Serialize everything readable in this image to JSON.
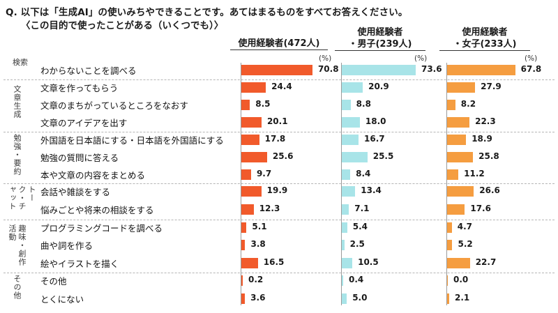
{
  "question": {
    "line1": "Q. 以下は「生成AI」の使いみちやできることです。あてはまるものをすべてお答えください。",
    "line2": "〈この目的で使ったことがある（いくつでも）〉"
  },
  "columns": [
    {
      "line1": "使用経験者(472人)",
      "line2": "",
      "color": "#f15a2b"
    },
    {
      "line1": "使用経験者",
      "line2": "・男子(239人)",
      "color": "#a8e4e8"
    },
    {
      "line1": "使用経験者",
      "line2": "・女子(233人)",
      "color": "#f59d40"
    }
  ],
  "unit": "(%)",
  "groups": [
    {
      "label": "検索"
    },
    {
      "label": "文章生成"
    },
    {
      "label": "勉強・要約"
    },
    {
      "label": "トーク・チャット"
    },
    {
      "label": "趣味・創作活動"
    },
    {
      "label": "その他"
    }
  ],
  "chart_data": {
    "type": "bar",
    "orientation": "horizontal",
    "categories": [
      "わからないことを調べる",
      "文章を作ってもらう",
      "文章のまちがっているところをなおす",
      "文章のアイデアを出す",
      "外国語を日本語にする・日本語を外国語にする",
      "勉強の質問に答える",
      "本や文章の内容をまとめる",
      "会話や雑談をする",
      "悩みごとや将来の相談をする",
      "プログラミングコードを調べる",
      "曲や詞を作る",
      "絵やイラストを描く",
      "その他",
      "とくにない"
    ],
    "series": [
      {
        "name": "使用経験者(472人)",
        "values": [
          70.8,
          24.4,
          8.5,
          20.1,
          17.8,
          25.6,
          9.7,
          19.9,
          12.3,
          5.1,
          3.8,
          16.5,
          0.2,
          3.6
        ]
      },
      {
        "name": "使用経験者・男子(239人)",
        "values": [
          73.6,
          20.9,
          8.8,
          18.0,
          16.7,
          25.5,
          8.4,
          13.4,
          7.1,
          5.4,
          2.5,
          10.5,
          0.4,
          5.0
        ]
      },
      {
        "name": "使用経験者・女子(233人)",
        "values": [
          67.8,
          27.9,
          8.2,
          22.3,
          18.9,
          25.8,
          11.2,
          26.6,
          17.6,
          4.7,
          5.2,
          22.7,
          0.0,
          2.1
        ]
      }
    ],
    "value_labels": [
      [
        "70.8",
        "24.4",
        "8.5",
        "20.1",
        "17.8",
        "25.6",
        "9.7",
        "19.9",
        "12.3",
        "5.1",
        "3.8",
        "16.5",
        "0.2",
        "3.6"
      ],
      [
        "73.6",
        "20.9",
        "8.8",
        "18.0",
        "16.7",
        "25.5",
        "8.4",
        "13.4",
        "7.1",
        "5.4",
        "2.5",
        "10.5",
        "0.4",
        "5.0"
      ],
      [
        "67.8",
        "27.9",
        "8.2",
        "22.3",
        "18.9",
        "25.8",
        "11.2",
        "26.6",
        "17.6",
        "4.7",
        "5.2",
        "22.7",
        "0.0",
        "2.1"
      ]
    ],
    "unit": "%",
    "xlim": [
      0,
      100
    ],
    "grid": false,
    "legend": "column headers"
  }
}
